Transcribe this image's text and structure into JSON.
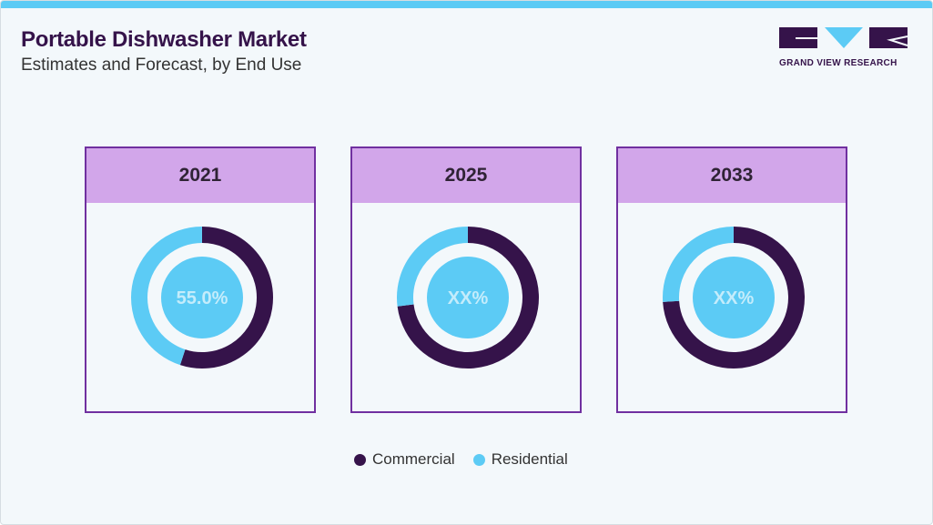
{
  "header": {
    "title": "Portable Dishwasher Market",
    "subtitle": "Estimates and Forecast, by End Use",
    "logo_text": "GRAND VIEW RESEARCH"
  },
  "colors": {
    "commercial": "#35134a",
    "residential": "#5ccbf5",
    "header_bg": "#d2a6ea",
    "border": "#7030a0",
    "accent_bar": "#5ccbf5"
  },
  "chart_data": {
    "type": "pie",
    "variant": "donut",
    "series_names": [
      "Commercial",
      "Residential"
    ],
    "charts": [
      {
        "title": "2021",
        "center_label": "55.0%",
        "values": {
          "Commercial": 55.0,
          "Residential": 45.0
        }
      },
      {
        "title": "2025",
        "center_label": "XX%",
        "values": {
          "Commercial": 73,
          "Residential": 27
        }
      },
      {
        "title": "2033",
        "center_label": "XX%",
        "values": {
          "Commercial": 74,
          "Residential": 26
        }
      }
    ],
    "legend": {
      "position": "bottom",
      "items": [
        "Commercial",
        "Residential"
      ]
    }
  }
}
